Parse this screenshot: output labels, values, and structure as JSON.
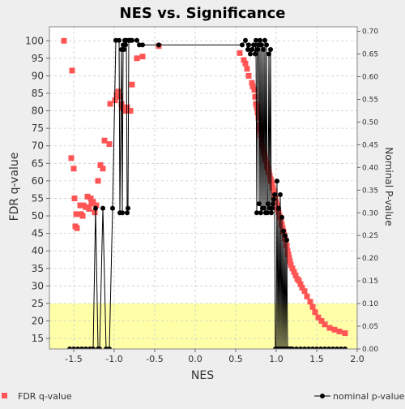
{
  "chart_data": {
    "type": "scatter",
    "title": "NES vs. Significance",
    "xlabel": "NES",
    "ylabel_left": "FDR q-value",
    "ylabel_right": "Nominal P-value",
    "xlim": [
      -1.8,
      2.0
    ],
    "ylim_left": [
      12,
      104
    ],
    "ylim_right": [
      0.0,
      0.71
    ],
    "x_ticks": [
      "-1.5",
      "-1.0",
      "-0.5",
      "0.0",
      "0.5",
      "1.0",
      "1.5",
      "2.0"
    ],
    "x_tick_values": [
      -1.5,
      -1.0,
      -0.5,
      0.0,
      0.5,
      1.0,
      1.5,
      2.0
    ],
    "y_left_ticks": [
      "15",
      "20",
      "25",
      "30",
      "35",
      "40",
      "45",
      "50",
      "55",
      "60",
      "65",
      "70",
      "75",
      "80",
      "85",
      "90",
      "95",
      "100"
    ],
    "y_left_tick_values": [
      15,
      20,
      25,
      30,
      35,
      40,
      45,
      50,
      55,
      60,
      65,
      70,
      75,
      80,
      85,
      90,
      95,
      100
    ],
    "y_right_ticks": [
      "0.00",
      "0.05",
      "0.10",
      "0.15",
      "0.20",
      "0.25",
      "0.30",
      "0.35",
      "0.40",
      "0.45",
      "0.50",
      "0.55",
      "0.60",
      "0.65",
      "0.70"
    ],
    "y_right_tick_values": [
      0.0,
      0.05,
      0.1,
      0.15,
      0.2,
      0.25,
      0.3,
      0.35,
      0.4,
      0.45,
      0.5,
      0.55,
      0.6,
      0.65,
      0.7
    ],
    "highlight_band": {
      "axis": "left",
      "from": 12,
      "to": 25,
      "color": "#ffffa8"
    },
    "grid": true,
    "legend": [
      {
        "name": "FDR q-value",
        "marker": "square",
        "color": "#ff5555",
        "position": "bottom-left"
      },
      {
        "name": "nominal p-value",
        "marker": "line-dot",
        "color": "#000000",
        "position": "bottom-right"
      }
    ],
    "series": [
      {
        "name": "FDR q-value",
        "axis": "left",
        "color": "#ff5555",
        "x": [
          -1.62,
          -1.52,
          -1.53,
          -1.5,
          -1.49,
          -1.47,
          -1.46,
          -1.48,
          -1.42,
          -1.41,
          -1.39,
          -1.38,
          -1.35,
          -1.33,
          -1.31,
          -1.29,
          -1.28,
          -1.26,
          -1.24,
          -1.22,
          -1.2,
          -1.17,
          -1.14,
          -1.12,
          -1.06,
          -1.05,
          -0.99,
          -0.97,
          -0.95,
          -0.93,
          -0.91,
          -0.9,
          -0.88,
          -0.86,
          -0.84,
          -0.8,
          -0.78,
          -0.72,
          -0.65,
          -0.45,
          0.55,
          0.6,
          0.62,
          0.64,
          0.66,
          0.7,
          0.71,
          0.73,
          0.74,
          0.75,
          0.76,
          0.77,
          0.78,
          0.79,
          0.8,
          0.81,
          0.82,
          0.83,
          0.84,
          0.85,
          0.86,
          0.87,
          0.88,
          0.89,
          0.9,
          0.91,
          0.92,
          0.93,
          0.94,
          0.95,
          0.96,
          0.97,
          0.98,
          0.99,
          1.0,
          1.01,
          1.02,
          1.03,
          1.04,
          1.05,
          1.06,
          1.07,
          1.08,
          1.09,
          1.1,
          1.11,
          1.12,
          1.13,
          1.14,
          1.15,
          1.16,
          1.17,
          1.18,
          1.2,
          1.22,
          1.24,
          1.26,
          1.28,
          1.3,
          1.32,
          1.35,
          1.38,
          1.42,
          1.45,
          1.48,
          1.52,
          1.56,
          1.6,
          1.66,
          1.72,
          1.78,
          1.85
        ],
        "values": [
          100,
          91.5,
          66.5,
          63.5,
          55,
          50.5,
          46.5,
          47,
          53,
          50.5,
          50,
          53,
          52.5,
          55.5,
          52,
          55,
          53.5,
          54,
          51,
          53,
          60,
          64.5,
          63.5,
          71.5,
          70.5,
          82,
          83,
          84.5,
          85.5,
          84,
          82,
          81,
          80.5,
          80,
          81,
          80,
          87.5,
          95,
          95.5,
          98.5,
          96.5,
          94.5,
          93.5,
          92,
          90,
          88,
          87,
          86,
          84,
          82,
          81,
          79.5,
          78,
          76,
          74.5,
          73,
          71.5,
          70,
          69,
          68,
          67,
          66,
          65,
          64,
          63.5,
          62.5,
          61.5,
          60.5,
          60,
          59,
          58,
          57,
          56,
          55,
          54,
          53,
          52,
          51,
          50,
          49.5,
          48.5,
          47.5,
          46.5,
          45.5,
          44.5,
          43.5,
          42.5,
          41.5,
          40,
          39,
          38,
          37,
          36,
          35,
          34,
          33,
          32,
          31.5,
          30.5,
          29.5,
          28.5,
          27,
          25.5,
          24,
          22.5,
          21,
          20,
          19,
          18,
          17.5,
          17,
          16.5
        ]
      },
      {
        "name": "nominal p-value",
        "axis": "right",
        "color": "#000000",
        "x": [
          -1.55,
          -1.5,
          -1.45,
          -1.4,
          -1.35,
          -1.3,
          -1.26,
          -1.23,
          -1.2,
          -1.18,
          -1.14,
          -1.1,
          -1.06,
          -1.02,
          -0.98,
          -0.94,
          -0.93,
          -0.91,
          -0.9,
          -0.89,
          -0.88,
          -0.87,
          -0.86,
          -0.85,
          -0.84,
          -0.83,
          -0.82,
          -0.81,
          -0.8,
          -0.78,
          -0.72,
          -0.69,
          -0.65,
          -0.45,
          0.58,
          0.62,
          0.65,
          0.66,
          0.68,
          0.7,
          0.72,
          0.74,
          0.75,
          0.76,
          0.77,
          0.78,
          0.79,
          0.8,
          0.81,
          0.82,
          0.83,
          0.84,
          0.85,
          0.86,
          0.87,
          0.88,
          0.89,
          0.9,
          0.91,
          0.92,
          0.93,
          0.94,
          0.95,
          0.96,
          0.97,
          0.98,
          0.99,
          1.0,
          1.01,
          1.02,
          1.03,
          1.04,
          1.05,
          1.06,
          1.07,
          1.08,
          1.09,
          1.1,
          1.11,
          1.12,
          1.13,
          1.14,
          1.15,
          1.16,
          1.17,
          1.18,
          1.2,
          1.25,
          1.3,
          1.35,
          1.4,
          1.45,
          1.5,
          1.55,
          1.6,
          1.65,
          1.7,
          1.75,
          1.8,
          1.85
        ],
        "values": [
          0.0,
          0.0,
          0.0,
          0.0,
          0.0,
          0.0,
          0.0,
          0.31,
          0.0,
          0.0,
          0.31,
          0.0,
          0.0,
          0.31,
          0.68,
          0.68,
          0.3,
          0.66,
          0.3,
          0.67,
          0.66,
          0.68,
          0.67,
          0.68,
          0.3,
          0.31,
          0.68,
          0.68,
          0.68,
          0.68,
          0.68,
          0.67,
          0.67,
          0.67,
          0.67,
          0.68,
          0.66,
          0.67,
          0.65,
          0.66,
          0.67,
          0.65,
          0.68,
          0.3,
          0.66,
          0.67,
          0.32,
          0.68,
          0.3,
          0.67,
          0.31,
          0.66,
          0.31,
          0.68,
          0.3,
          0.67,
          0.3,
          0.32,
          0.65,
          0.31,
          0.66,
          0.3,
          0.31,
          0.32,
          0.33,
          0.34,
          0.0,
          0.0,
          0.37,
          0.0,
          0.31,
          0.0,
          0.34,
          0.0,
          0.29,
          0.0,
          0.26,
          0.0,
          0.25,
          0.0,
          0.24,
          0.0,
          0.0,
          0.0,
          0.0,
          0.0,
          0.0,
          0.0,
          0.0,
          0.0,
          0.0,
          0.0,
          0.0,
          0.0,
          0.0,
          0.0,
          0.0,
          0.0,
          0.0,
          0.0
        ]
      }
    ]
  }
}
